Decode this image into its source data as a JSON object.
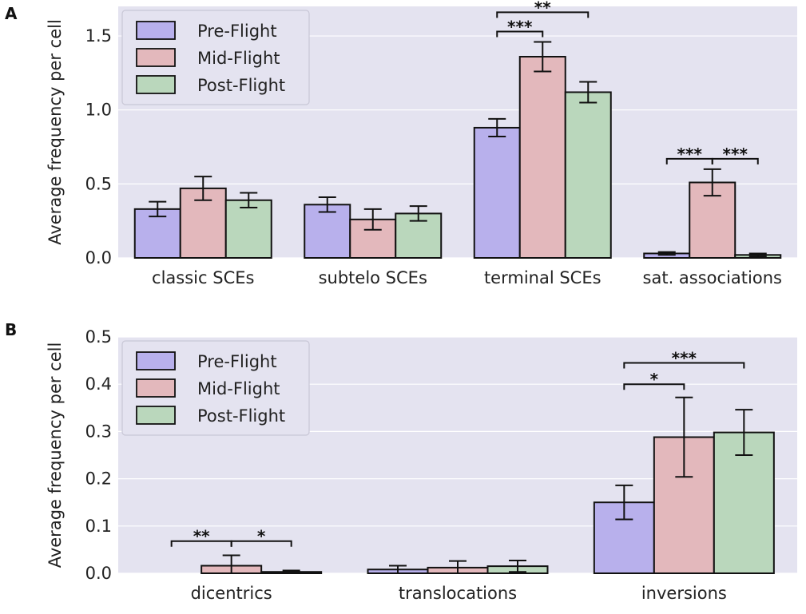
{
  "panels": [
    {
      "label": "A"
    },
    {
      "label": "B"
    }
  ],
  "colors": {
    "plot_bg": "#e4e3f0",
    "grid": "#ffffff",
    "series": [
      "#b8b0ec",
      "#e3b8bc",
      "#bad7bc"
    ],
    "edge": "#111111"
  },
  "chart_data": [
    {
      "type": "bar",
      "panel": "A",
      "title": "",
      "xlabel": "",
      "ylabel": "Average frequency per cell",
      "ylim": [
        0,
        1.7
      ],
      "yticks": [
        0.0,
        0.5,
        1.0,
        1.5
      ],
      "ytick_labels": [
        "0.0",
        "0.5",
        "1.0",
        "1.5"
      ],
      "categories": [
        "classic SCEs",
        "subtelo SCEs",
        "terminal SCEs",
        "sat. associations"
      ],
      "series": [
        {
          "name": "Pre-Flight",
          "values": [
            0.33,
            0.36,
            0.88,
            0.03
          ],
          "errors": [
            0.05,
            0.05,
            0.06,
            0.01
          ]
        },
        {
          "name": "Mid-Flight",
          "values": [
            0.47,
            0.26,
            1.36,
            0.51
          ],
          "errors": [
            0.08,
            0.07,
            0.1,
            0.09
          ]
        },
        {
          "name": "Post-Flight",
          "values": [
            0.39,
            0.3,
            1.12,
            0.02
          ],
          "errors": [
            0.05,
            0.05,
            0.07,
            0.01
          ]
        }
      ],
      "legend": {
        "position": "top-left",
        "entries": [
          "Pre-Flight",
          "Mid-Flight",
          "Post-Flight"
        ]
      },
      "significance": [
        {
          "category": 2,
          "from": 0,
          "to": 1,
          "label": "***",
          "y": 1.53
        },
        {
          "category": 2,
          "from": 0,
          "to": 2,
          "label": "**",
          "y": 1.66
        },
        {
          "category": 3,
          "from": 0,
          "to": 1,
          "label": "***",
          "y": 0.67
        },
        {
          "category": 3,
          "from": 1,
          "to": 2,
          "label": "***",
          "y": 0.67
        }
      ]
    },
    {
      "type": "bar",
      "panel": "B",
      "title": "",
      "xlabel": "",
      "ylabel": "Average frequency per cell",
      "ylim": [
        0,
        0.5
      ],
      "yticks": [
        0.0,
        0.1,
        0.2,
        0.3,
        0.4,
        0.5
      ],
      "ytick_labels": [
        "0.0",
        "0.1",
        "0.2",
        "0.3",
        "0.4",
        "0.5"
      ],
      "categories": [
        "dicentrics",
        "translocations",
        "inversions"
      ],
      "series": [
        {
          "name": "Pre-Flight",
          "values": [
            0.0,
            0.008,
            0.15
          ],
          "errors": [
            0.0,
            0.008,
            0.036
          ]
        },
        {
          "name": "Mid-Flight",
          "values": [
            0.016,
            0.012,
            0.288
          ],
          "errors": [
            0.022,
            0.014,
            0.084
          ]
        },
        {
          "name": "Post-Flight",
          "values": [
            0.003,
            0.015,
            0.298
          ],
          "errors": [
            0.003,
            0.012,
            0.048
          ]
        }
      ],
      "legend": {
        "position": "top-left",
        "entries": [
          "Pre-Flight",
          "Mid-Flight",
          "Post-Flight"
        ]
      },
      "significance": [
        {
          "category": 0,
          "from": 0,
          "to": 1,
          "label": "**",
          "y": 0.068
        },
        {
          "category": 0,
          "from": 1,
          "to": 2,
          "label": "*",
          "y": 0.068
        },
        {
          "category": 2,
          "from": 0,
          "to": 1,
          "label": "*",
          "y": 0.4
        },
        {
          "category": 2,
          "from": 0,
          "to": 2,
          "label": "***",
          "y": 0.445
        }
      ]
    }
  ]
}
